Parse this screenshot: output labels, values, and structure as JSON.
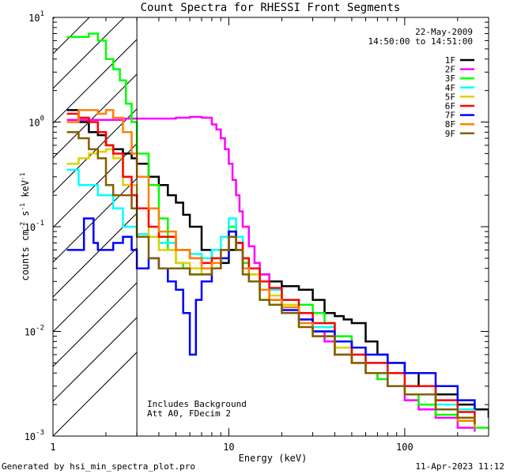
{
  "chart_data": {
    "type": "line",
    "title": "Count Spectra for RHESSI Front Segments",
    "xlabel": "Energy (keV)",
    "ylabel_parts": [
      "counts cm",
      "-2",
      " s",
      "-1",
      " keV",
      "-1"
    ],
    "xscale": "log",
    "yscale": "log",
    "xlim": [
      1,
      300
    ],
    "ylim": [
      0.001,
      10
    ],
    "x_ticks": [
      1,
      10,
      100
    ],
    "x_tick_labels": [
      "1",
      "10",
      "100"
    ],
    "y_ticks": [
      0.001,
      0.01,
      0.1,
      1,
      10
    ],
    "y_tick_bases": [
      "10",
      "10",
      "10",
      "10",
      "10"
    ],
    "y_tick_exps": [
      "-3",
      "-2",
      "-1",
      "0",
      "1"
    ],
    "vertical_line_x": 3,
    "hatch_region": [
      1,
      3
    ],
    "date": "22-May-2009",
    "time_range": "14:50:00 to 14:51:00",
    "annotations": [
      "Includes Background",
      "Att A0, FDecim 2"
    ],
    "legend_position": "top-right",
    "series": [
      {
        "name": "1F",
        "color": "#000000",
        "x": [
          1.2,
          1.4,
          1.6,
          1.8,
          2.0,
          2.2,
          2.5,
          2.8,
          3.0,
          3.5,
          4.0,
          4.5,
          5.0,
          5.5,
          6.0,
          7.0,
          8.0,
          9.0,
          10.0,
          11.0,
          12.0,
          13.0,
          15.0,
          17.0,
          20.0,
          25.0,
          30.0,
          35.0,
          40.0,
          45.0,
          50.0,
          60.0,
          70.0,
          80.0,
          100.0,
          120.0,
          150.0,
          200.0,
          250.0,
          300.0
        ],
        "y": [
          1.3,
          1.0,
          0.8,
          0.75,
          0.6,
          0.55,
          0.5,
          0.45,
          0.4,
          0.3,
          0.25,
          0.2,
          0.17,
          0.13,
          0.1,
          0.06,
          0.05,
          0.045,
          0.06,
          0.07,
          0.05,
          0.04,
          0.035,
          0.03,
          0.027,
          0.025,
          0.02,
          0.015,
          0.014,
          0.013,
          0.012,
          0.008,
          0.006,
          0.005,
          0.004,
          0.003,
          0.0025,
          0.002,
          0.0018,
          0.0015
        ]
      },
      {
        "name": "2F",
        "color": "#ff00ff",
        "x": [
          1.2,
          1.5,
          2.0,
          2.5,
          3.0,
          3.5,
          4.0,
          5.0,
          6.0,
          7.0,
          8.0,
          8.5,
          9.0,
          9.5,
          10.0,
          10.5,
          11.0,
          11.5,
          12.0,
          13.0,
          14.0,
          15.0,
          17.0,
          20.0,
          25.0,
          30.0,
          35.0,
          40.0,
          50.0,
          60.0,
          70.0,
          80.0,
          100.0,
          120.0,
          150.0,
          200.0,
          250.0
        ],
        "y": [
          1.05,
          1.05,
          1.05,
          1.08,
          1.08,
          1.08,
          1.08,
          1.1,
          1.12,
          1.1,
          0.95,
          0.85,
          0.7,
          0.55,
          0.4,
          0.28,
          0.2,
          0.14,
          0.1,
          0.065,
          0.045,
          0.035,
          0.025,
          0.018,
          0.013,
          0.01,
          0.008,
          0.006,
          0.005,
          0.004,
          0.0035,
          0.003,
          0.0022,
          0.0018,
          0.0015,
          0.0012,
          0.0011
        ]
      },
      {
        "name": "3F",
        "color": "#00ff00",
        "x": [
          1.2,
          1.4,
          1.6,
          1.8,
          2.0,
          2.2,
          2.4,
          2.6,
          2.8,
          3.0,
          3.5,
          4.0,
          4.5,
          5.0,
          5.5,
          6.0,
          7.0,
          8.0,
          9.0,
          10.0,
          11.0,
          12.0,
          13.0,
          15.0,
          17.0,
          20.0,
          25.0,
          30.0,
          35.0,
          40.0,
          50.0,
          60.0,
          70.0,
          80.0,
          100.0,
          120.0,
          150.0,
          200.0,
          250.0,
          300.0
        ],
        "y": [
          6.5,
          6.5,
          7.0,
          6.0,
          4.0,
          3.2,
          2.5,
          1.5,
          1.0,
          0.5,
          0.25,
          0.12,
          0.06,
          0.045,
          0.04,
          0.035,
          0.04,
          0.05,
          0.06,
          0.1,
          0.06,
          0.045,
          0.035,
          0.02,
          0.025,
          0.02,
          0.018,
          0.015,
          0.012,
          0.009,
          0.006,
          0.004,
          0.0035,
          0.003,
          0.0025,
          0.002,
          0.0016,
          0.0014,
          0.0012,
          0.0012
        ]
      },
      {
        "name": "4F",
        "color": "#00ffff",
        "x": [
          1.2,
          1.4,
          1.6,
          1.8,
          2.0,
          2.2,
          2.5,
          3.0,
          3.5,
          4.0,
          5.0,
          6.0,
          7.0,
          8.0,
          9.0,
          10.0,
          11.0,
          12.0,
          13.0,
          15.0,
          17.0,
          20.0,
          25.0,
          30.0,
          40.0,
          50.0,
          60.0,
          80.0,
          100.0,
          150.0,
          200.0,
          250.0
        ],
        "y": [
          0.35,
          0.25,
          0.25,
          0.2,
          0.2,
          0.15,
          0.1,
          0.085,
          0.08,
          0.07,
          0.06,
          0.055,
          0.05,
          0.06,
          0.08,
          0.12,
          0.08,
          0.05,
          0.04,
          0.03,
          0.025,
          0.02,
          0.015,
          0.011,
          0.008,
          0.006,
          0.005,
          0.004,
          0.003,
          0.002,
          0.0018,
          0.0016
        ]
      },
      {
        "name": "5F",
        "color": "#e0d000",
        "x": [
          1.2,
          1.4,
          1.6,
          1.8,
          2.0,
          2.2,
          2.5,
          3.0,
          3.5,
          4.0,
          5.0,
          6.0,
          7.0,
          8.0,
          9.0,
          10.0,
          11.0,
          12.0,
          13.0,
          15.0,
          17.0,
          20.0,
          25.0,
          30.0,
          40.0,
          50.0,
          60.0,
          80.0,
          100.0,
          150.0,
          200.0,
          250.0
        ],
        "y": [
          0.4,
          0.45,
          0.5,
          0.52,
          0.55,
          0.45,
          0.25,
          0.15,
          0.08,
          0.06,
          0.045,
          0.04,
          0.035,
          0.04,
          0.05,
          0.08,
          0.06,
          0.04,
          0.035,
          0.025,
          0.022,
          0.018,
          0.013,
          0.01,
          0.007,
          0.005,
          0.004,
          0.003,
          0.0025,
          0.0018,
          0.0015,
          0.0013
        ]
      },
      {
        "name": "6F",
        "color": "#ff0000",
        "x": [
          1.2,
          1.4,
          1.6,
          1.8,
          2.0,
          2.2,
          2.5,
          2.8,
          3.0,
          3.5,
          4.0,
          5.0,
          6.0,
          7.0,
          8.0,
          9.0,
          10.0,
          11.0,
          12.0,
          13.0,
          15.0,
          17.0,
          20.0,
          25.0,
          30.0,
          40.0,
          50.0,
          60.0,
          80.0,
          100.0,
          150.0,
          200.0,
          250.0
        ],
        "y": [
          1.2,
          1.1,
          1.0,
          0.8,
          0.6,
          0.5,
          0.3,
          0.2,
          0.15,
          0.1,
          0.08,
          0.06,
          0.05,
          0.045,
          0.05,
          0.06,
          0.09,
          0.07,
          0.05,
          0.04,
          0.03,
          0.026,
          0.02,
          0.015,
          0.012,
          0.008,
          0.006,
          0.005,
          0.004,
          0.003,
          0.0022,
          0.0017,
          0.0015
        ]
      },
      {
        "name": "7F",
        "color": "#0000ff",
        "x": [
          1.2,
          1.4,
          1.5,
          1.6,
          1.7,
          1.8,
          2.0,
          2.2,
          2.5,
          2.8,
          3.0,
          3.5,
          4.0,
          4.5,
          5.0,
          5.5,
          6.0,
          6.5,
          7.0,
          8.0,
          9.0,
          10.0,
          11.0,
          12.0,
          13.0,
          15.0,
          17.0,
          20.0,
          25.0,
          30.0,
          40.0,
          50.0,
          60.0,
          80.0,
          100.0,
          150.0,
          200.0,
          250.0
        ],
        "y": [
          0.06,
          0.06,
          0.12,
          0.12,
          0.07,
          0.06,
          0.06,
          0.07,
          0.08,
          0.06,
          0.04,
          0.05,
          0.04,
          0.03,
          0.025,
          0.015,
          0.006,
          0.02,
          0.03,
          0.04,
          0.05,
          0.09,
          0.06,
          0.04,
          0.03,
          0.025,
          0.02,
          0.016,
          0.013,
          0.01,
          0.008,
          0.007,
          0.006,
          0.005,
          0.004,
          0.003,
          0.0022,
          0.0018
        ]
      },
      {
        "name": "8F",
        "color": "#ff8000",
        "x": [
          1.2,
          1.4,
          1.6,
          1.8,
          2.0,
          2.2,
          2.5,
          2.8,
          3.0,
          3.5,
          4.0,
          5.0,
          6.0,
          7.0,
          8.0,
          9.0,
          10.0,
          11.0,
          12.0,
          13.0,
          15.0,
          17.0,
          20.0,
          25.0,
          30.0,
          40.0,
          50.0,
          60.0,
          80.0,
          100.0,
          150.0,
          200.0,
          250.0
        ],
        "y": [
          1.0,
          1.3,
          1.3,
          1.2,
          1.3,
          1.1,
          0.8,
          0.5,
          0.3,
          0.15,
          0.09,
          0.06,
          0.05,
          0.04,
          0.045,
          0.06,
          0.08,
          0.06,
          0.04,
          0.03,
          0.025,
          0.02,
          0.017,
          0.012,
          0.009,
          0.006,
          0.005,
          0.004,
          0.003,
          0.0025,
          0.0018,
          0.0014,
          0.0012
        ]
      },
      {
        "name": "9F",
        "color": "#806000",
        "x": [
          1.2,
          1.4,
          1.6,
          1.8,
          2.0,
          2.2,
          2.5,
          2.8,
          3.0,
          3.5,
          4.0,
          5.0,
          6.0,
          7.0,
          8.0,
          9.0,
          10.0,
          11.0,
          12.0,
          13.0,
          15.0,
          17.0,
          20.0,
          25.0,
          30.0,
          40.0,
          50.0,
          60.0,
          80.0,
          100.0,
          150.0,
          200.0,
          250.0
        ],
        "y": [
          0.8,
          0.7,
          0.55,
          0.45,
          0.25,
          0.2,
          0.2,
          0.15,
          0.08,
          0.05,
          0.04,
          0.04,
          0.035,
          0.035,
          0.04,
          0.06,
          0.08,
          0.06,
          0.035,
          0.03,
          0.02,
          0.018,
          0.015,
          0.011,
          0.009,
          0.006,
          0.005,
          0.004,
          0.003,
          0.0025,
          0.0018,
          0.0015,
          0.0013
        ]
      }
    ]
  },
  "footer": {
    "generator": "Generated by hsi_min_spectra_plot.pro",
    "timestamp": "11-Apr-2023 11:12"
  }
}
